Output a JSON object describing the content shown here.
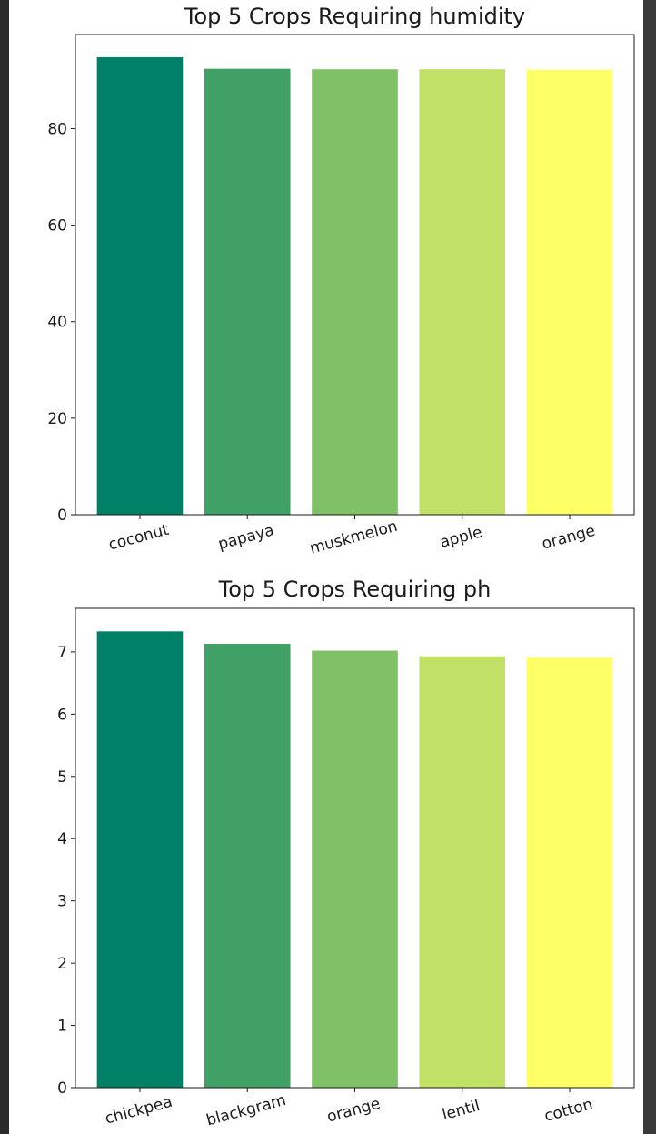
{
  "chart_data": [
    {
      "type": "bar",
      "title": "Top 5 Crops Requiring humidity",
      "categories": [
        "coconut",
        "papaya",
        "muskmelon",
        "apple",
        "orange"
      ],
      "values": [
        94.8,
        92.4,
        92.3,
        92.3,
        92.2
      ],
      "colors": [
        "#008066",
        "#40a066",
        "#80c066",
        "#c0e066",
        "#ffff66"
      ],
      "yticks": [
        0,
        20,
        40,
        60,
        80
      ],
      "ylim": [
        0,
        99.5
      ],
      "xlabel": "",
      "ylabel": ""
    },
    {
      "type": "bar",
      "title": "Top 5 Crops Requiring ph",
      "categories": [
        "chickpea",
        "blackgram",
        "orange",
        "lentil",
        "cotton"
      ],
      "values": [
        7.33,
        7.13,
        7.02,
        6.93,
        6.91
      ],
      "colors": [
        "#008066",
        "#40a066",
        "#80c066",
        "#c0e066",
        "#ffff66"
      ],
      "yticks": [
        0,
        1,
        2,
        3,
        4,
        5,
        6,
        7
      ],
      "ylim": [
        0,
        7.7
      ],
      "xlabel": "",
      "ylabel": ""
    }
  ]
}
